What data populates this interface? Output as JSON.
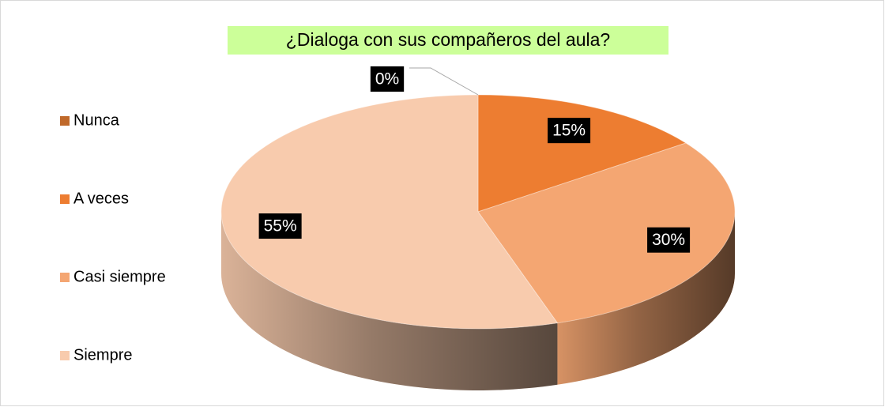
{
  "chart_data": {
    "type": "pie3d",
    "title": "¿Dialoga con sus compañeros del aula?",
    "categories": [
      "Nunca",
      "A veces",
      "Casi siempre",
      "Siempre"
    ],
    "values": [
      0,
      15,
      30,
      55
    ],
    "value_labels": [
      "0%",
      "15%",
      "30%",
      "55%"
    ],
    "colors": [
      "#c0692a",
      "#ed7d31",
      "#f4a672",
      "#f8cbad"
    ],
    "legend": "left"
  }
}
